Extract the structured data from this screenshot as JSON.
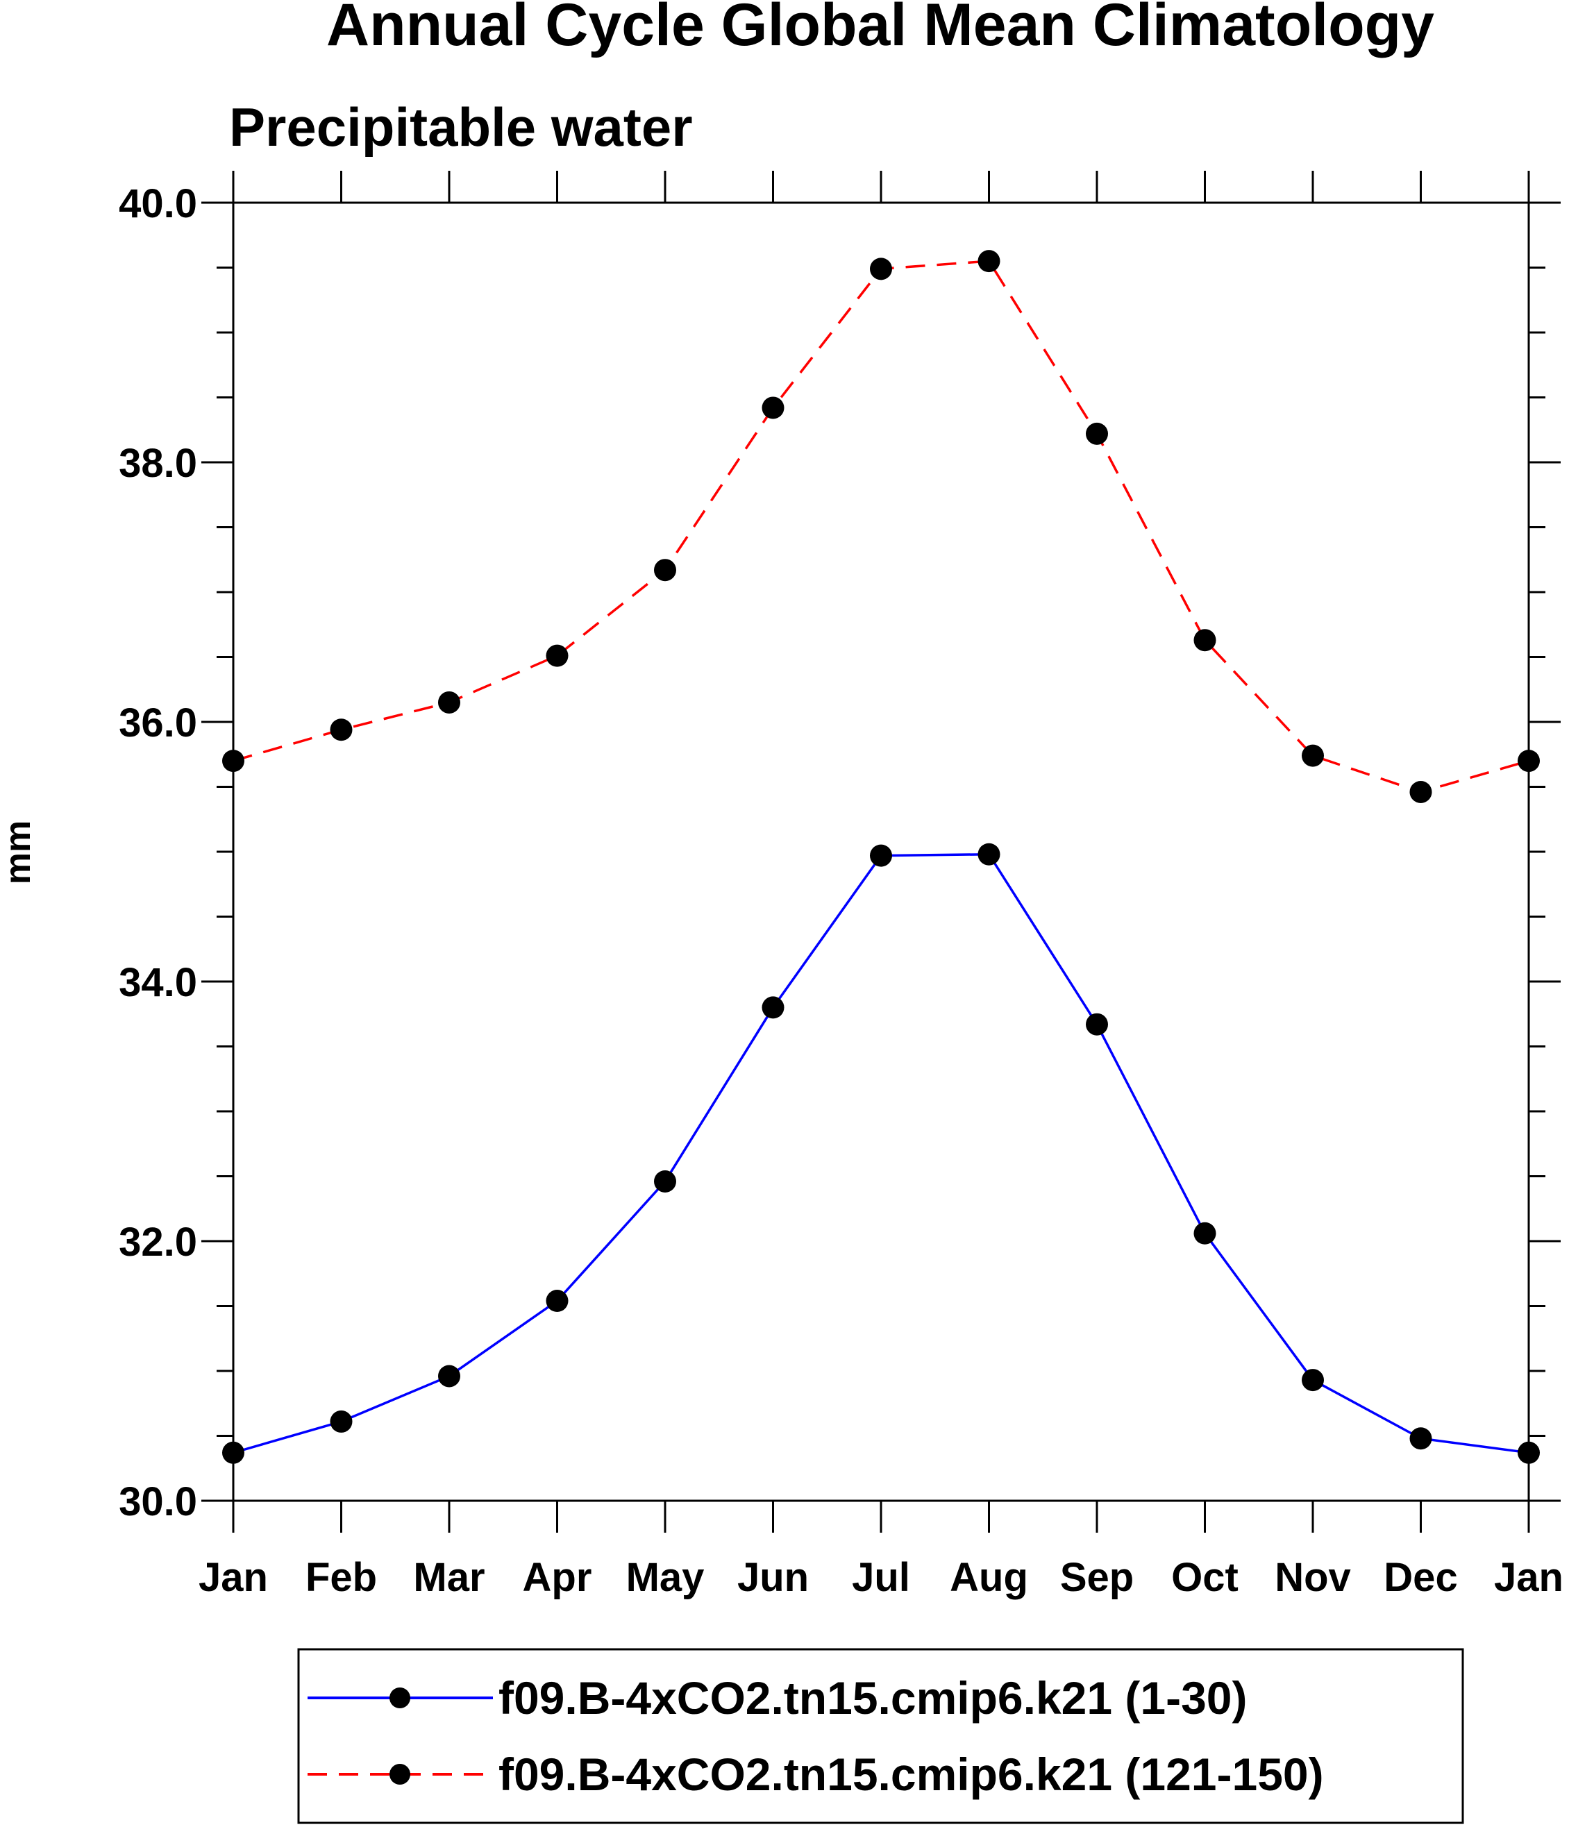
{
  "chart_data": {
    "type": "line",
    "title": "Annual Cycle Global Mean Climatology",
    "subtitle": "Precipitable water",
    "xlabel": "",
    "ylabel": "mm",
    "categories": [
      "Jan",
      "Feb",
      "Mar",
      "Apr",
      "May",
      "Jun",
      "Jul",
      "Aug",
      "Sep",
      "Oct",
      "Nov",
      "Dec",
      "Jan"
    ],
    "ylim": [
      30.0,
      40.0
    ],
    "yticks": [
      "30.0",
      "32.0",
      "34.0",
      "36.0",
      "38.0",
      "40.0"
    ],
    "yminor_step": 0.5,
    "grid": false,
    "legend_position": "bottom",
    "series": [
      {
        "name": "f09.B-4xCO2.tn15.cmip6.k21 (1-30)",
        "color": "#0000ff",
        "dash": "solid",
        "marker": "filled-circle",
        "values": [
          30.37,
          30.61,
          30.96,
          31.54,
          32.46,
          33.8,
          34.97,
          34.98,
          33.67,
          32.06,
          30.93,
          30.48,
          30.37
        ]
      },
      {
        "name": "f09.B-4xCO2.tn15.cmip6.k21 (121-150)",
        "color": "#ff0000",
        "dash": "dashed",
        "marker": "filled-circle",
        "values": [
          35.7,
          35.94,
          36.15,
          36.51,
          37.17,
          38.42,
          39.49,
          39.55,
          38.22,
          36.63,
          35.74,
          35.46,
          35.7
        ]
      }
    ]
  }
}
